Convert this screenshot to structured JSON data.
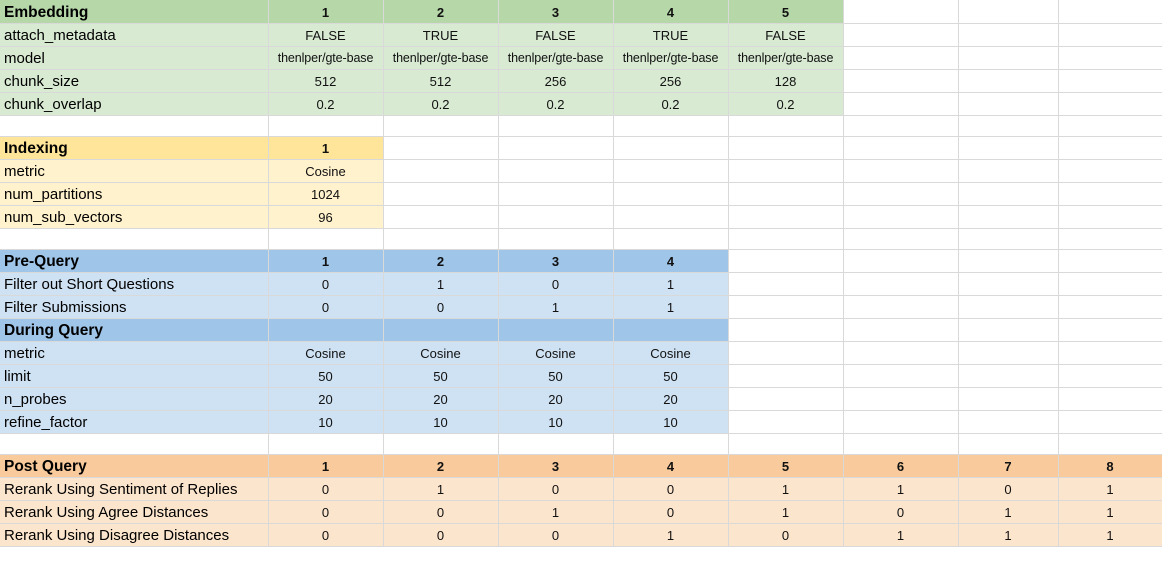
{
  "embedding": {
    "title": "Embedding",
    "columns": [
      "1",
      "2",
      "3",
      "4",
      "5"
    ],
    "rows": [
      {
        "label": "attach_metadata",
        "values": [
          "FALSE",
          "TRUE",
          "FALSE",
          "TRUE",
          "FALSE"
        ]
      },
      {
        "label": "model",
        "values": [
          "thenlper/gte-base",
          "thenlper/gte-base",
          "thenlper/gte-base",
          "thenlper/gte-base",
          "thenlper/gte-base"
        ]
      },
      {
        "label": "chunk_size",
        "values": [
          "512",
          "512",
          "256",
          "256",
          "128"
        ]
      },
      {
        "label": "chunk_overlap",
        "values": [
          "0.2",
          "0.2",
          "0.2",
          "0.2",
          "0.2"
        ]
      }
    ]
  },
  "indexing": {
    "title": "Indexing",
    "columns": [
      "1"
    ],
    "rows": [
      {
        "label": "metric",
        "values": [
          "Cosine"
        ]
      },
      {
        "label": "num_partitions",
        "values": [
          "1024"
        ]
      },
      {
        "label": "num_sub_vectors",
        "values": [
          "96"
        ]
      }
    ]
  },
  "pre_query": {
    "title": "Pre-Query",
    "columns": [
      "1",
      "2",
      "3",
      "4"
    ],
    "rows": [
      {
        "label": "Filter out Short Questions",
        "values": [
          "0",
          "1",
          "0",
          "1"
        ]
      },
      {
        "label": "Filter Submissions",
        "values": [
          "0",
          "0",
          "1",
          "1"
        ]
      }
    ]
  },
  "during_query": {
    "title": "During Query",
    "rows": [
      {
        "label": "metric",
        "values": [
          "Cosine",
          "Cosine",
          "Cosine",
          "Cosine"
        ]
      },
      {
        "label": "limit",
        "values": [
          "50",
          "50",
          "50",
          "50"
        ]
      },
      {
        "label": "n_probes",
        "values": [
          "20",
          "20",
          "20",
          "20"
        ]
      },
      {
        "label": "refine_factor",
        "values": [
          "10",
          "10",
          "10",
          "10"
        ]
      }
    ]
  },
  "post_query": {
    "title": "Post Query",
    "columns": [
      "1",
      "2",
      "3",
      "4",
      "5",
      "6",
      "7",
      "8"
    ],
    "rows": [
      {
        "label": "Rerank Using Sentiment of Replies",
        "values": [
          "0",
          "1",
          "0",
          "0",
          "1",
          "1",
          "0",
          "1"
        ]
      },
      {
        "label": "Rerank Using Agree Distances",
        "values": [
          "0",
          "0",
          "1",
          "0",
          "1",
          "0",
          "1",
          "1"
        ]
      },
      {
        "label": "Rerank Using Disagree Distances",
        "values": [
          "0",
          "0",
          "0",
          "1",
          "0",
          "1",
          "1",
          "1"
        ]
      }
    ]
  },
  "colors": {
    "embedding_header": "#b6d7a8",
    "embedding_body": "#d9ead3",
    "indexing_header": "#ffe599",
    "indexing_body": "#fff2cc",
    "query_header": "#9fc5e8",
    "query_body": "#cfe2f3",
    "post_header": "#f9cb9c",
    "post_body": "#fce5cd",
    "gridline": "#d9d9d9"
  }
}
